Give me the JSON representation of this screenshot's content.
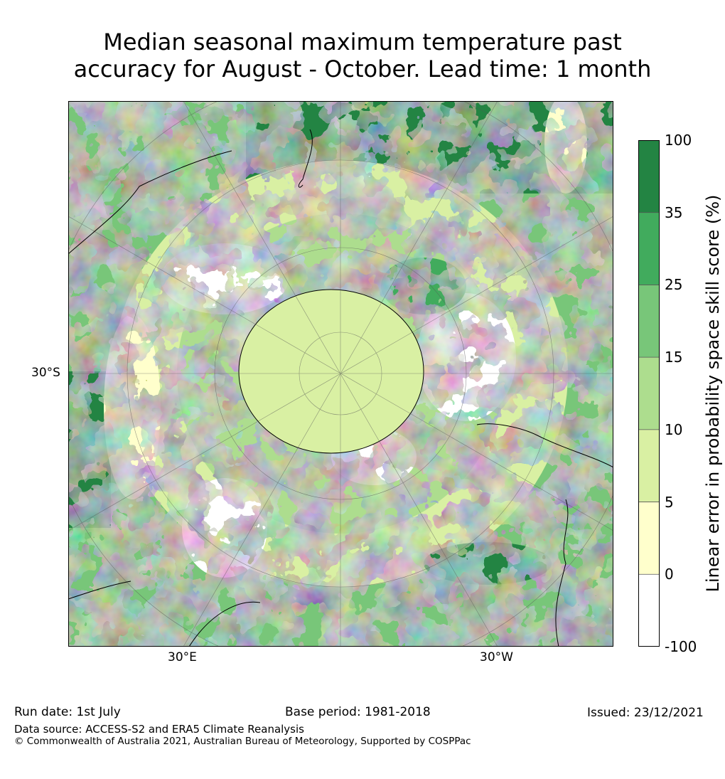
{
  "title_line1": "Median seasonal maximum temperature past",
  "title_line2": "accuracy for August - October. Lead time: 1 month",
  "map": {
    "projection": "south-polar stereographic",
    "lat_label": "30°S",
    "lon_labels": [
      "30°E",
      "30°W"
    ],
    "field_palette": [
      "#ffffff",
      "#ffffcc",
      "#d9f0a3",
      "#addd8e",
      "#78c679",
      "#41ab5d",
      "#238443"
    ]
  },
  "colorbar": {
    "title": "Linear error in probability space skill score (%)",
    "ticks": [
      "100",
      "35",
      "25",
      "15",
      "10",
      "5",
      "0",
      "-100"
    ],
    "bins": [
      {
        "range": "35 to 100",
        "color": "#238443"
      },
      {
        "range": "25 to 35",
        "color": "#41ab5d"
      },
      {
        "range": "15 to 25",
        "color": "#78c679"
      },
      {
        "range": "10 to 15",
        "color": "#addd8e"
      },
      {
        "range": "5 to 10",
        "color": "#d9f0a3"
      },
      {
        "range": "0 to 5",
        "color": "#ffffcc"
      },
      {
        "range": "-100 to 0",
        "color": "#ffffff"
      }
    ]
  },
  "footer": {
    "run_date": "Run date: 1st July",
    "base_period": "Base period: 1981-2018",
    "issued": "Issued: 23/12/2021",
    "data_source": "Data source: ACCESS-S2 and ERA5 Climate Reanalysis",
    "copyright": "© Commonwealth of Australia 2021, Australian Bureau of Meteorology, Supported by COSPPac"
  }
}
